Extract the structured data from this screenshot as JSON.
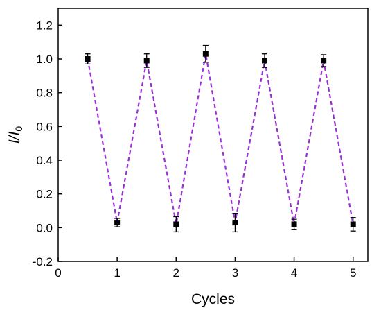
{
  "chart_data": {
    "type": "scatter",
    "xlabel": "Cycles",
    "ylabel_main": "I/I",
    "ylabel_sub": "0",
    "xlim": [
      0,
      5.25
    ],
    "ylim": [
      -0.2,
      1.3
    ],
    "xticks": [
      0,
      1,
      2,
      3,
      4,
      5
    ],
    "xtick_labels": [
      "0",
      "1",
      "2",
      "3",
      "4",
      "5"
    ],
    "yticks": [
      -0.2,
      0.0,
      0.2,
      0.4,
      0.6,
      0.8,
      1.0,
      1.2
    ],
    "ytick_labels": [
      "-0.2",
      "0.0",
      "0.2",
      "0.4",
      "0.6",
      "0.8",
      "1.0",
      "1.2"
    ],
    "grid": false,
    "series": [
      {
        "x": [
          0.5,
          1,
          1.5,
          2,
          2.5,
          3,
          3.5,
          4,
          4.5,
          5
        ],
        "y": [
          1.0,
          0.03,
          0.99,
          0.02,
          1.03,
          0.03,
          0.99,
          0.02,
          0.99,
          0.02
        ],
        "err": [
          0.03,
          0.025,
          0.04,
          0.045,
          0.05,
          0.055,
          0.04,
          0.03,
          0.035,
          0.04
        ],
        "line_color": "#9b30d9",
        "marker_color": "#000000"
      }
    ]
  }
}
